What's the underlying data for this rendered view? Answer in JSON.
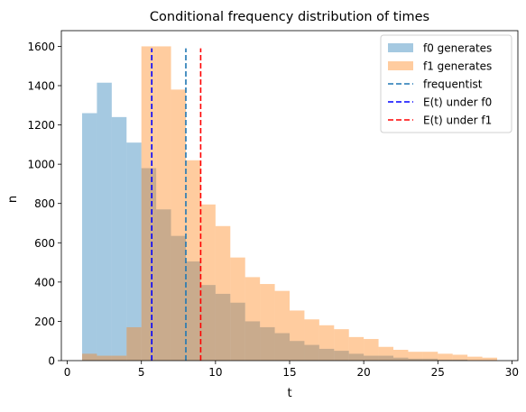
{
  "chart_data": {
    "type": "bar",
    "title": "Conditional frequency distribution of times",
    "xlabel": "t",
    "ylabel": "n",
    "xlim": [
      -0.4,
      30.4
    ],
    "ylim": [
      0,
      1680
    ],
    "x_ticks": [
      0,
      5,
      10,
      15,
      20,
      25,
      30
    ],
    "x_tick_labels": [
      "0",
      "5",
      "10",
      "15",
      "20",
      "25",
      "30"
    ],
    "y_ticks": [
      0,
      200,
      400,
      600,
      800,
      1000,
      1200,
      1400,
      1600
    ],
    "y_tick_labels": [
      "0",
      "200",
      "400",
      "600",
      "800",
      "1000",
      "1200",
      "1400",
      "1600"
    ],
    "bin_width": 1,
    "series": [
      {
        "name": "f0 generates",
        "color": "#1f77b4",
        "alpha": 0.4,
        "bin_starts": [
          1,
          2,
          3,
          4,
          5,
          6,
          7,
          8,
          9,
          10,
          11,
          12,
          13,
          14,
          15,
          16,
          17,
          18,
          19,
          20,
          21,
          22,
          23,
          24,
          25,
          26,
          27,
          28
        ],
        "values": [
          1260,
          1415,
          1240,
          1110,
          980,
          770,
          635,
          505,
          385,
          340,
          295,
          200,
          170,
          140,
          100,
          80,
          60,
          50,
          35,
          25,
          25,
          15,
          10,
          10,
          5,
          5,
          0,
          0
        ]
      },
      {
        "name": "f1 generates",
        "color": "#ff7f0e",
        "alpha": 0.4,
        "bin_starts": [
          1,
          2,
          3,
          4,
          5,
          6,
          7,
          8,
          9,
          10,
          11,
          12,
          13,
          14,
          15,
          16,
          17,
          18,
          19,
          20,
          21,
          22,
          23,
          24,
          25,
          26,
          27,
          28
        ],
        "values": [
          35,
          25,
          25,
          170,
          1600,
          1600,
          1380,
          1020,
          795,
          685,
          525,
          425,
          390,
          355,
          255,
          210,
          180,
          160,
          120,
          110,
          70,
          55,
          45,
          45,
          35,
          30,
          20,
          15
        ]
      }
    ],
    "vlines": [
      {
        "name": "frequentist",
        "x": 8.0,
        "color": "#1f77b4",
        "style": "dashed",
        "ymax": 1590
      },
      {
        "name": "E(t) under f0",
        "x": 5.7,
        "color": "#0000ff",
        "style": "dashed",
        "ymax": 1590
      },
      {
        "name": "E(t) under f1",
        "x": 9.0,
        "color": "#ff0000",
        "style": "dashed",
        "ymax": 1590
      }
    ],
    "legend": {
      "placement": "top-right",
      "entries": [
        {
          "label": "f0 generates",
          "kind": "patch",
          "color": "#1f77b4",
          "alpha": 0.4
        },
        {
          "label": "f1 generates",
          "kind": "patch",
          "color": "#ff7f0e",
          "alpha": 0.4
        },
        {
          "label": "frequentist",
          "kind": "line",
          "color": "#1f77b4"
        },
        {
          "label": "E(t) under f0",
          "kind": "line",
          "color": "#0000ff"
        },
        {
          "label": "E(t) under f1",
          "kind": "line",
          "color": "#ff0000"
        }
      ]
    },
    "grid": false
  }
}
